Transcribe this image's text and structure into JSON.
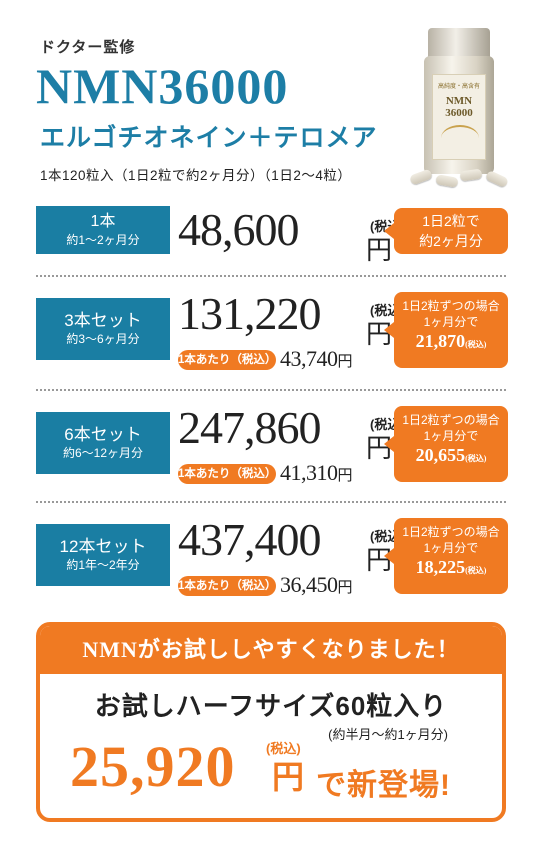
{
  "header": {
    "eyebrow": "ドクター監修",
    "product_name": "NMN36000",
    "product_sub": "エルゴチオネイン＋テロメア",
    "note": "1本120粒入（1日2粒で約2ヶ月分）（1日2〜4粒）"
  },
  "bottle": {
    "label_line1": "高純度・高含有",
    "label_line2": "NMN",
    "label_line3": "36000"
  },
  "plans": [
    {
      "label1": "1本",
      "label2": "約1〜2ヶ月分",
      "price": "48,600",
      "yen": "円",
      "tax": "(税込)",
      "bubble1": "1日2粒で",
      "bubble2": "約2ヶ月分"
    },
    {
      "label1": "3本セット",
      "label2": "約3〜6ヶ月分",
      "price": "131,220",
      "yen": "円",
      "tax": "(税込)",
      "per_badge": "1本あたり（税込）",
      "per_price": "43,740",
      "per_yen": "円",
      "bubble1": "1日2粒ずつの場合",
      "bubble2": "1ヶ月分で",
      "bubble3": "21,870",
      "bubble_tax": "(税込)"
    },
    {
      "label1": "6本セット",
      "label2": "約6〜12ヶ月分",
      "price": "247,860",
      "yen": "円",
      "tax": "(税込)",
      "per_badge": "1本あたり（税込）",
      "per_price": "41,310",
      "per_yen": "円",
      "bubble1": "1日2粒ずつの場合",
      "bubble2": "1ヶ月分で",
      "bubble3": "20,655",
      "bubble_tax": "(税込)"
    },
    {
      "label1": "12本セット",
      "label2": "約1年〜2年分",
      "price": "437,400",
      "yen": "円",
      "tax": "(税込)",
      "per_badge": "1本あたり（税込）",
      "per_price": "36,450",
      "per_yen": "円",
      "bubble1": "1日2粒ずつの場合",
      "bubble2": "1ヶ月分で",
      "bubble3": "18,225",
      "bubble_tax": "(税込)"
    }
  ],
  "trial": {
    "headline": "NMNがお試ししやすくなりました！",
    "title": "お試しハーフサイズ60粒入り",
    "note": "(約半月〜約1ヶ月分)",
    "price": "25,920",
    "yen": "円",
    "tax": "(税込)",
    "tail": "で新登場!"
  },
  "colors": {
    "blue": "#1a7ea3",
    "orange": "#f07a22"
  }
}
